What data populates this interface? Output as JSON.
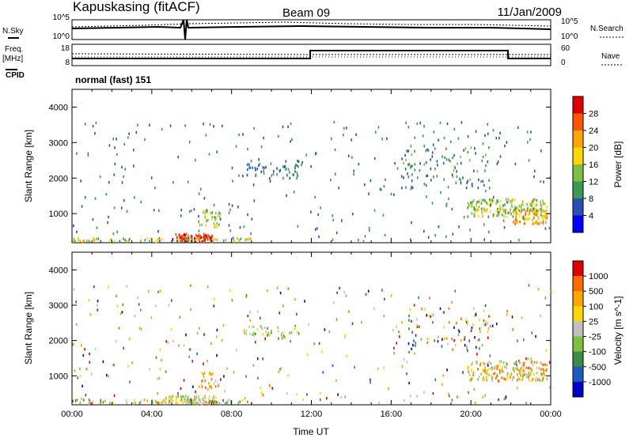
{
  "header": {
    "station": "Kapuskasing (fitACF)",
    "beam": "Beam 09",
    "date": "11/Jan/2009"
  },
  "side_labels": {
    "nsky": "N.Sky",
    "nsearch": "N.Search",
    "freq": "Freq.",
    "freq_unit": "[MHz]",
    "nave": "Nave",
    "cpid": "CPID",
    "cpid_value": "normal (fast) 151"
  },
  "panels": {
    "noise": {
      "left_ticks": [
        "10^5",
        "10^0"
      ],
      "right_ticks": [
        "10^5",
        "10^0"
      ]
    },
    "freq": {
      "left_ticks": [
        "18",
        "8"
      ],
      "right_ticks": [
        "60",
        "0"
      ]
    }
  },
  "colors": {
    "power_scale": [
      "#0000ff",
      "#2a50b0",
      "#3a9a55",
      "#7fbf3f",
      "#ffd700",
      "#ffa500",
      "#ff5500",
      "#e00000"
    ],
    "velocity_scale": [
      "#0000cc",
      "#1e5abe",
      "#3a8c46",
      "#7fbf3f",
      "#c0c0c0",
      "#ffd700",
      "#ffa500",
      "#ff6a00",
      "#e00000"
    ]
  },
  "chart_data": [
    {
      "type": "heatmap",
      "name": "power",
      "xlabel": "",
      "ylabel": "Slant Range [km]",
      "xlim": [
        0,
        24
      ],
      "ylim": [
        180,
        4500
      ],
      "y_ticks": [
        1000,
        2000,
        3000,
        4000
      ],
      "colorbar": {
        "label": "Power [dB]",
        "ticks": [
          "28",
          "24",
          "20",
          "16",
          "12",
          "8",
          "4"
        ],
        "range": [
          0,
          32
        ]
      },
      "scatter_regions": [
        {
          "x": [
            5.0,
            7.0
          ],
          "y": [
            200,
            420
          ],
          "n": 90,
          "v": [
            24,
            32
          ]
        },
        {
          "x": [
            0.0,
            9.0
          ],
          "y": [
            200,
            300
          ],
          "n": 70,
          "v": [
            8,
            24
          ]
        },
        {
          "x": [
            6.3,
            7.4
          ],
          "y": [
            600,
            1100
          ],
          "n": 35,
          "v": [
            10,
            22
          ]
        },
        {
          "x": [
            8.5,
            11.5
          ],
          "y": [
            2050,
            2400
          ],
          "n": 45,
          "v": [
            4,
            12
          ]
        },
        {
          "x": [
            16.5,
            21.0
          ],
          "y": [
            1700,
            2900
          ],
          "n": 80,
          "v": [
            4,
            14
          ]
        },
        {
          "x": [
            19.8,
            23.8
          ],
          "y": [
            900,
            1400
          ],
          "n": 190,
          "v": [
            8,
            22
          ]
        },
        {
          "x": [
            22.0,
            23.8
          ],
          "y": [
            700,
            1100
          ],
          "n": 70,
          "v": [
            18,
            26
          ]
        },
        {
          "x": [
            0.0,
            24.0
          ],
          "y": [
            200,
            3600
          ],
          "n": 300,
          "v": [
            4,
            12
          ]
        }
      ]
    },
    {
      "type": "heatmap",
      "name": "velocity",
      "xlabel": "Time UT",
      "ylabel": "Slant Range [km]",
      "xlim": [
        0,
        24
      ],
      "ylim": [
        180,
        4500
      ],
      "x_ticks": [
        "00:00",
        "04:00",
        "08:00",
        "12:00",
        "16:00",
        "20:00",
        "00:00"
      ],
      "y_ticks": [
        1000,
        2000,
        3000,
        4000
      ],
      "colorbar": {
        "label": "Velocity [m s^-1]",
        "ticks": [
          "1000",
          "500",
          "100",
          "25",
          "-25",
          "-100",
          "-500",
          "-1000"
        ]
      },
      "scatter_regions": [
        {
          "x": [
            4.5,
            7.2
          ],
          "y": [
            200,
            420
          ],
          "n": 80,
          "c": [
            3,
            5
          ]
        },
        {
          "x": [
            0.0,
            9.0
          ],
          "y": [
            200,
            320
          ],
          "n": 70,
          "c": [
            2,
            7
          ]
        },
        {
          "x": [
            6.3,
            7.4
          ],
          "y": [
            600,
            1100
          ],
          "n": 30,
          "c": [
            4,
            7
          ]
        },
        {
          "x": [
            8.5,
            11.5
          ],
          "y": [
            2050,
            2400
          ],
          "n": 40,
          "c": [
            2,
            5
          ]
        },
        {
          "x": [
            16.5,
            21.0
          ],
          "y": [
            1700,
            2900
          ],
          "n": 70,
          "c": [
            0,
            8
          ]
        },
        {
          "x": [
            19.8,
            23.8
          ],
          "y": [
            850,
            1400
          ],
          "n": 190,
          "c": [
            3,
            7
          ]
        },
        {
          "x": [
            0.0,
            24.0
          ],
          "y": [
            200,
            3600
          ],
          "n": 300,
          "c": [
            0,
            8
          ]
        }
      ]
    }
  ]
}
